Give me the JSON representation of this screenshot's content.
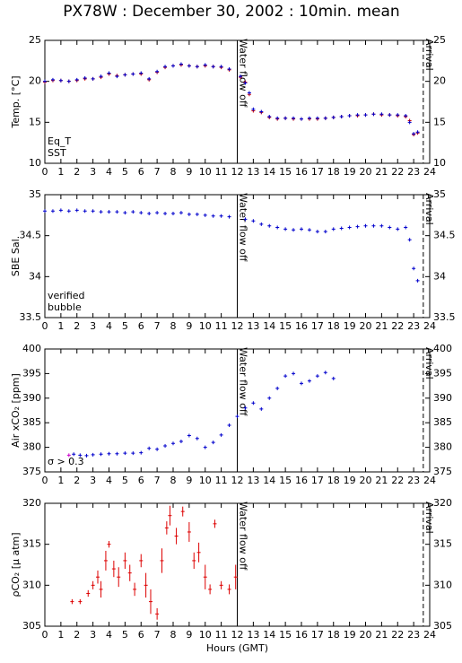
{
  "title": "PX78W : December 30, 2002 : 10min. mean",
  "chart_data": [
    {
      "type": "scatter",
      "ylabel": "Temp. [°C]",
      "xlim": [
        0,
        24
      ],
      "ylim": [
        10,
        25
      ],
      "yticks": [
        10,
        15,
        20,
        25
      ],
      "xticks": [
        0,
        1,
        2,
        3,
        4,
        5,
        6,
        7,
        8,
        9,
        10,
        11,
        12,
        13,
        14,
        15,
        16,
        17,
        18,
        19,
        20,
        21,
        22,
        23,
        24
      ],
      "legend": "lower left",
      "annotations": [
        {
          "text": "Water flow off",
          "x": 12,
          "linestyle": "solid"
        },
        {
          "text": "Arrival",
          "x": 23.6,
          "linestyle": "dashed"
        }
      ],
      "series": [
        {
          "name": "Eq_T",
          "color": "#cc0000",
          "x": [
            0,
            0.5,
            1,
            1.5,
            2,
            2.5,
            3,
            3.5,
            4,
            4.5,
            5,
            5.5,
            6,
            6.5,
            7,
            7.5,
            8,
            8.5,
            9,
            9.5,
            10,
            10.5,
            11,
            11.5,
            12.2,
            12.5,
            12.75,
            13,
            13.5,
            14,
            14.5,
            15,
            15.5,
            16,
            16.5,
            17,
            17.5,
            18,
            18.5,
            19,
            19.5,
            20,
            20.5,
            21,
            21.5,
            22,
            22.5,
            22.75,
            23,
            23.25
          ],
          "values": [
            19.9,
            20.1,
            20.1,
            20.0,
            20.1,
            20.3,
            20.3,
            20.5,
            20.9,
            20.7,
            20.8,
            20.9,
            20.9,
            20.2,
            21.1,
            21.7,
            21.9,
            22.0,
            21.9,
            21.8,
            21.9,
            21.8,
            21.7,
            21.4,
            20.5,
            19.9,
            18.4,
            16.4,
            16.2,
            15.6,
            15.4,
            15.5,
            15.4,
            15.4,
            15.4,
            15.4,
            15.5,
            15.6,
            15.7,
            15.8,
            15.8,
            15.9,
            16.0,
            15.9,
            15.9,
            15.8,
            15.7,
            15.2,
            13.5,
            13.7
          ]
        },
        {
          "name": "SST",
          "color": "#0000cc",
          "x": [
            0,
            0.5,
            1,
            1.5,
            2,
            2.5,
            3,
            3.5,
            4,
            4.5,
            5,
            5.5,
            6,
            6.5,
            7,
            7.5,
            8,
            8.5,
            9,
            9.5,
            10,
            10.5,
            11,
            11.5,
            12.2,
            12.5,
            12.75,
            13,
            13.5,
            14,
            14.5,
            15,
            15.5,
            16,
            16.5,
            17,
            17.5,
            18,
            18.5,
            19,
            19.5,
            20,
            20.5,
            21,
            21.5,
            22,
            22.5,
            22.75,
            23,
            23.25
          ],
          "values": [
            20.0,
            20.2,
            20.1,
            20.0,
            20.2,
            20.4,
            20.3,
            20.6,
            21.0,
            20.6,
            20.8,
            20.9,
            21.0,
            20.3,
            21.2,
            21.8,
            21.9,
            22.1,
            21.9,
            21.8,
            22.0,
            21.8,
            21.8,
            21.5,
            20.6,
            19.8,
            18.6,
            16.6,
            16.3,
            15.7,
            15.5,
            15.5,
            15.5,
            15.4,
            15.5,
            15.5,
            15.5,
            15.6,
            15.7,
            15.8,
            15.9,
            15.9,
            16.0,
            16.0,
            15.9,
            15.9,
            15.8,
            15.0,
            13.6,
            13.8
          ]
        }
      ]
    },
    {
      "type": "scatter",
      "ylabel": "SBE Sal.",
      "xlim": [
        0,
        24
      ],
      "ylim": [
        33.5,
        35
      ],
      "yticks": [
        33.5,
        34,
        34.5,
        35
      ],
      "xticks": [
        0,
        1,
        2,
        3,
        4,
        5,
        6,
        7,
        8,
        9,
        10,
        11,
        12,
        13,
        14,
        15,
        16,
        17,
        18,
        19,
        20,
        21,
        22,
        23,
        24
      ],
      "legend": "lower left",
      "annotations": [
        {
          "text": "Water flow off",
          "x": 12,
          "linestyle": "solid"
        },
        {
          "text": "Arrival",
          "x": 23.6,
          "linestyle": "dashed"
        }
      ],
      "series": [
        {
          "name": "verified",
          "color": "#0000cc",
          "x": [
            0,
            0.5,
            1,
            1.5,
            2,
            2.5,
            3,
            3.5,
            4,
            4.5,
            5,
            5.5,
            6,
            6.5,
            7,
            7.5,
            8,
            8.5,
            9,
            9.5,
            10,
            10.5,
            11,
            11.5,
            12.5,
            13,
            13.5,
            14,
            14.5,
            15,
            15.5,
            16,
            16.5,
            17,
            17.5,
            18,
            18.5,
            19,
            19.5,
            20,
            20.5,
            21,
            21.5,
            22,
            22.5,
            22.75,
            23,
            23.25
          ],
          "values": [
            34.8,
            34.8,
            34.81,
            34.8,
            34.81,
            34.8,
            34.8,
            34.79,
            34.79,
            34.79,
            34.78,
            34.79,
            34.78,
            34.77,
            34.78,
            34.77,
            34.77,
            34.78,
            34.76,
            34.76,
            34.75,
            34.74,
            34.74,
            34.73,
            34.7,
            34.68,
            34.64,
            34.62,
            34.6,
            34.58,
            34.57,
            34.58,
            34.57,
            34.55,
            34.55,
            34.58,
            34.59,
            34.6,
            34.61,
            34.62,
            34.62,
            34.62,
            34.6,
            34.58,
            34.6,
            34.45,
            34.1,
            33.95
          ]
        },
        {
          "name": "bubble",
          "color": "#cc00cc",
          "x": [],
          "values": []
        }
      ]
    },
    {
      "type": "scatter",
      "ylabel": "Air xCO₂ [ppm]",
      "xlim": [
        0,
        24
      ],
      "ylim": [
        375,
        400
      ],
      "yticks": [
        375,
        380,
        385,
        390,
        395,
        400
      ],
      "xticks": [
        0,
        1,
        2,
        3,
        4,
        5,
        6,
        7,
        8,
        9,
        10,
        11,
        12,
        13,
        14,
        15,
        16,
        17,
        18,
        19,
        20,
        21,
        22,
        23,
        24
      ],
      "legend": "lower left",
      "annotations": [
        {
          "text": "Water flow off",
          "x": 12,
          "linestyle": "solid"
        },
        {
          "text": "Arrival",
          "x": 23.6,
          "linestyle": "dashed"
        }
      ],
      "series": [
        {
          "color": "#0000cc",
          "x": [
            1.8,
            2.2,
            2.6,
            3,
            3.5,
            4,
            4.5,
            5,
            5.5,
            6,
            6.1,
            6.5,
            7,
            7.5,
            8,
            8.5,
            9,
            9.5,
            10,
            10.5,
            11,
            11.5,
            12,
            12.5,
            13,
            13.5,
            14,
            14.5,
            15,
            15.5,
            16,
            16.5,
            17,
            17.5,
            18
          ],
          "values": [
            378.6,
            378.4,
            378.3,
            378.5,
            378.6,
            378.7,
            378.7,
            378.8,
            378.8,
            378.9,
            null,
            379.8,
            379.6,
            380.3,
            380.8,
            381.2,
            382.4,
            381.8,
            380.0,
            381.0,
            382.5,
            384.5,
            386.3,
            388.0,
            389.0,
            387.8,
            390.0,
            392.0,
            394.5,
            395.0,
            393.0,
            393.5,
            394.5,
            395.2,
            394.0
          ]
        },
        {
          "name": "σ > 0.3",
          "color": "#cc00cc",
          "x": [
            1.5
          ],
          "values": [
            378.4
          ]
        }
      ]
    },
    {
      "type": "errorbar",
      "ylabel": "ρCO₂ [μ atm]",
      "xlabel": "Hours (GMT)",
      "xlim": [
        0,
        24
      ],
      "ylim": [
        305,
        320
      ],
      "yticks": [
        305,
        310,
        315,
        320
      ],
      "xticks": [
        0,
        1,
        2,
        3,
        4,
        5,
        6,
        7,
        8,
        9,
        10,
        11,
        12,
        13,
        14,
        15,
        16,
        17,
        18,
        19,
        20,
        21,
        22,
        23,
        24
      ],
      "annotations": [
        {
          "text": "Water flow off",
          "x": 12,
          "linestyle": "solid"
        },
        {
          "text": "Arrival",
          "x": 23.6,
          "linestyle": "dashed"
        }
      ],
      "series": [
        {
          "color": "#dd0000",
          "x": [
            1.7,
            2.2,
            2.7,
            3.0,
            3.3,
            3.5,
            3.8,
            4.0,
            4.3,
            4.6,
            5.0,
            5.3,
            5.6,
            6.0,
            6.3,
            6.6,
            7.0,
            7.3,
            7.6,
            7.8,
            8.2,
            8.6,
            9.0,
            9.3,
            9.6,
            10.0,
            10.3,
            10.6,
            11.0,
            11.5,
            11.9
          ],
          "values": [
            308,
            308,
            309,
            310,
            311,
            309.5,
            313,
            315,
            312,
            311,
            313,
            311.5,
            309.5,
            313,
            310,
            308,
            306.5,
            313,
            317,
            318.5,
            316,
            319,
            316.5,
            313,
            314,
            311,
            309.5,
            317.5,
            310,
            309.5,
            311
          ],
          "errors": [
            0.3,
            0.3,
            0.4,
            0.5,
            0.8,
            1.0,
            1.2,
            0.4,
            1.0,
            1.2,
            1.0,
            1.0,
            0.8,
            0.8,
            1.5,
            1.5,
            0.7,
            1.5,
            0.8,
            1.2,
            1.0,
            0.6,
            1.2,
            1.0,
            1.2,
            1.5,
            0.6,
            0.5,
            0.5,
            0.6,
            1.5
          ]
        }
      ]
    }
  ]
}
